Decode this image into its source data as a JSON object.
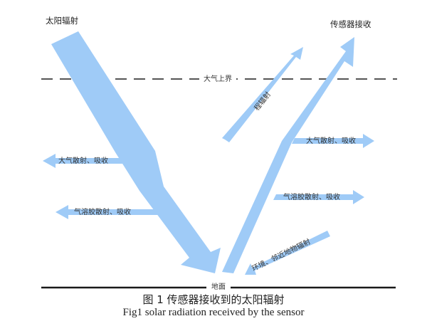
{
  "labels": {
    "solar_radiation": "太阳辐射",
    "sensor_receive": "传感器接收",
    "atmosphere_top": "大气上界",
    "path_radiation": "程辐射",
    "atm_scatter_abs_left": "大气散射、吸收",
    "aerosol_scatter_abs_left": "气溶胶散射、吸收",
    "atm_scatter_abs_right": "大气散射、吸收",
    "aerosol_scatter_abs_right": "气溶胶散射、吸收",
    "env_radiation": "环境、邻近地物辐射",
    "ground": "地面"
  },
  "caption": {
    "cn": "图 1  传感器接收到的太阳辐射",
    "en": "Fig1 solar radiation received by the sensor"
  },
  "colors": {
    "arrow": "#9fcbf7",
    "line": "#1a1a1a",
    "dash": "#555555"
  }
}
